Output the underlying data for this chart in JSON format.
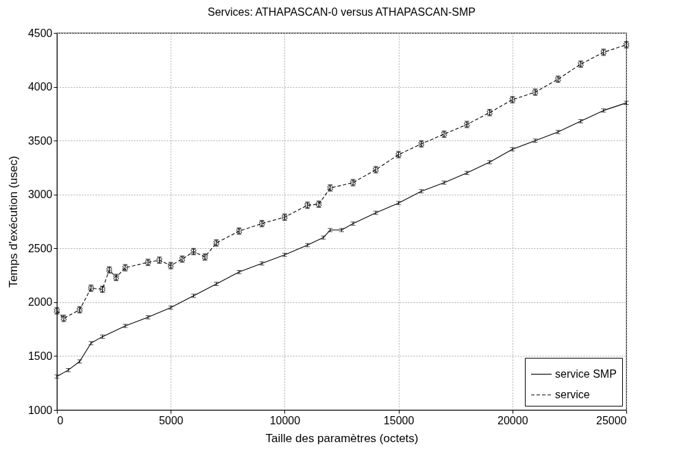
{
  "chart_data": {
    "type": "line",
    "title": "Services: ATHAPASCAN-0 versus ATHAPASCAN-SMP",
    "xlabel": "Taille des paramètres (octets)",
    "ylabel": "Temps d'exécution (usec)",
    "xlim": [
      0,
      25000
    ],
    "xticks": [
      0,
      5000,
      10000,
      15000,
      20000,
      25000
    ],
    "ylim": [
      1000,
      4500
    ],
    "yticks": [
      1000,
      1500,
      2000,
      2500,
      3000,
      3500,
      4000,
      4500
    ],
    "grid": true,
    "legend": "bottom right",
    "series": [
      {
        "name": "service SMP",
        "color": "#000000",
        "line_style": "solid",
        "marker": "none",
        "x": [
          0,
          500,
          1000,
          1500,
          2000,
          3000,
          4000,
          5000,
          6000,
          7000,
          8000,
          9000,
          10000,
          11000,
          11700,
          12000,
          12500,
          13000,
          14000,
          15000,
          16000,
          17000,
          18000,
          19000,
          20000,
          21000,
          22000,
          23000,
          24000,
          25000
        ],
        "values": [
          1310,
          1370,
          1450,
          1620,
          1680,
          1780,
          1860,
          1950,
          2060,
          2170,
          2280,
          2360,
          2440,
          2530,
          2600,
          2670,
          2670,
          2730,
          2830,
          2920,
          3030,
          3110,
          3200,
          3300,
          3420,
          3500,
          3580,
          3680,
          3780,
          3850
        ],
        "errors": [
          15,
          15,
          15,
          15,
          15,
          15,
          15,
          15,
          15,
          15,
          15,
          15,
          15,
          15,
          15,
          15,
          15,
          15,
          15,
          15,
          15,
          15,
          15,
          15,
          15,
          15,
          15,
          15,
          15,
          15
        ]
      },
      {
        "name": "service",
        "color": "#000000",
        "line_style": "dashed",
        "marker": "cross",
        "x": [
          0,
          300,
          1000,
          1500,
          2000,
          2300,
          2600,
          3000,
          4000,
          4500,
          5000,
          5500,
          6000,
          6500,
          7000,
          8000,
          9000,
          10000,
          11000,
          11500,
          12000,
          13000,
          14000,
          15000,
          16000,
          17000,
          18000,
          19000,
          20000,
          21000,
          22000,
          23000,
          24000,
          25000
        ],
        "values": [
          1920,
          1850,
          1930,
          2130,
          2120,
          2300,
          2230,
          2320,
          2370,
          2390,
          2340,
          2400,
          2470,
          2420,
          2550,
          2660,
          2730,
          2790,
          2900,
          2910,
          3060,
          3110,
          3230,
          3370,
          3470,
          3560,
          3650,
          3760,
          3880,
          3950,
          4070,
          4210,
          4320,
          4390
        ],
        "errors": [
          30,
          30,
          30,
          30,
          30,
          30,
          30,
          30,
          30,
          30,
          30,
          30,
          30,
          30,
          30,
          30,
          30,
          30,
          30,
          30,
          30,
          30,
          30,
          30,
          30,
          30,
          30,
          30,
          30,
          30,
          30,
          30,
          30,
          30
        ]
      }
    ]
  }
}
